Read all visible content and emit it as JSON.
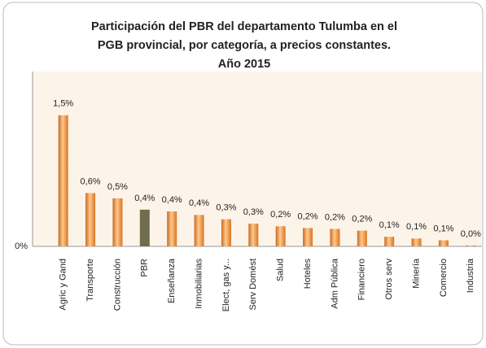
{
  "chart_data": {
    "type": "bar",
    "title": [
      "Participación del PBR del departamento  Tulumba en el",
      "PGB provincial, por categoría, a precios constantes.",
      "Año 2015"
    ],
    "categories": [
      "Agric y Gand",
      "Transporte",
      "Construcción",
      "PBR",
      "Enseñanza",
      "Inmobiliarias",
      "Elect, gas y...",
      "Serv Domést",
      "Salud",
      "Hoteles",
      "Adm Pública",
      "Financiero",
      "Otros serv",
      "Minería",
      "Comercio",
      "Industria"
    ],
    "values": [
      1.5,
      0.61,
      0.55,
      0.42,
      0.4,
      0.36,
      0.31,
      0.26,
      0.23,
      0.21,
      0.2,
      0.18,
      0.11,
      0.09,
      0.07,
      0.01
    ],
    "value_labels": [
      "1,5%",
      "0,6%",
      "0,5%",
      "0,4%",
      "0,4%",
      "0,4%",
      "0,3%",
      "0,3%",
      "0,2%",
      "0,2%",
      "0,2%",
      "0,2%",
      "0,1%",
      "0,1%",
      "0,1%",
      "0,0%"
    ],
    "colors": [
      "#f39a4c",
      "#f39a4c",
      "#f39a4c",
      "#6e6d4e",
      "#f39a4c",
      "#f39a4c",
      "#f39a4c",
      "#f39a4c",
      "#f39a4c",
      "#f39a4c",
      "#f39a4c",
      "#f39a4c",
      "#f39a4c",
      "#f39a4c",
      "#f39a4c",
      "#f39a4c"
    ],
    "ylim": [
      0,
      2.0
    ],
    "yticks": [
      {
        "value": 0,
        "label": "0%"
      }
    ]
  }
}
